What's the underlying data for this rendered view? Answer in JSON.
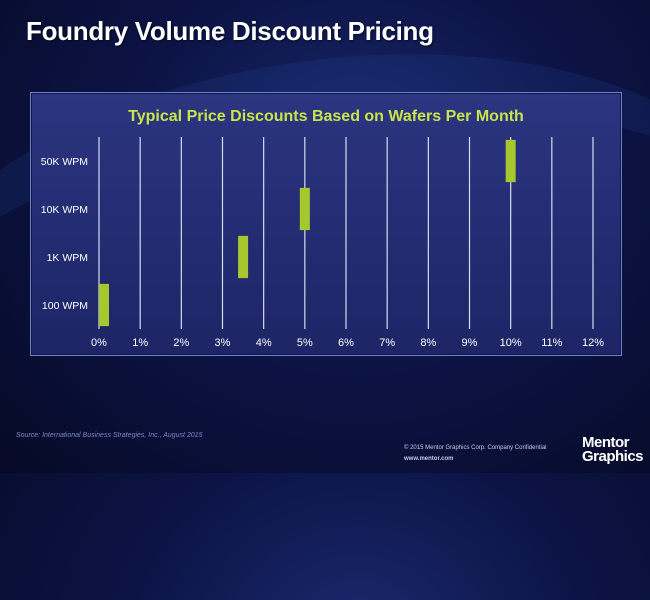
{
  "slide": {
    "title": "Foundry Volume Discount Pricing",
    "source": "Source: International Business Strategies, Inc., August 2015",
    "copyright": "© 2015 Mentor Graphics Corp.   Company Confidential",
    "website": "www.mentor.com",
    "logo_lines": [
      "Mentor",
      "Graphics"
    ]
  },
  "colors": {
    "bar": "#a6c82e",
    "chart_title": "#c9e34a",
    "gridline": "#d6dbef",
    "tick_text": "#ffffff"
  },
  "chart_data": {
    "type": "bar",
    "orientation": "horizontal-range",
    "title": "Typical Price Discounts Based on Wafers Per Month",
    "categories": [
      "100 WPM",
      "1K WPM",
      "10K WPM",
      "50K WPM"
    ],
    "series": [
      {
        "values": [
          {
            "category": "100 WPM",
            "low": 0,
            "high": 0
          },
          {
            "category": "1K WPM",
            "low": 3.5,
            "high": 3.5
          },
          {
            "category": "10K WPM",
            "low": 5,
            "high": 5
          },
          {
            "category": "50K WPM",
            "low": 10,
            "high": 10
          }
        ]
      }
    ],
    "x_ticks": [
      "0%",
      "1%",
      "2%",
      "3%",
      "4%",
      "5%",
      "6%",
      "7%",
      "8%",
      "9%",
      "10%",
      "11%",
      "12%"
    ],
    "xlim": [
      0,
      12
    ],
    "xlabel": "",
    "ylabel": "",
    "grid": "vertical"
  }
}
